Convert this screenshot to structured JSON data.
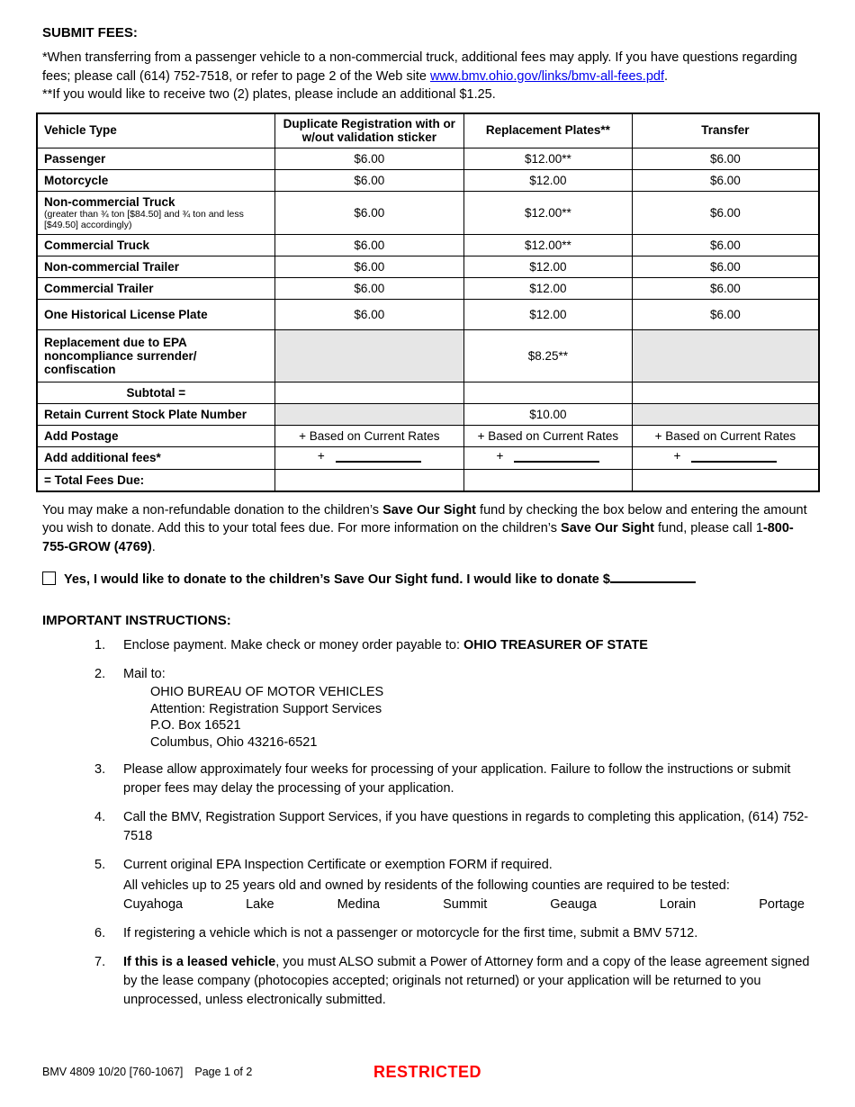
{
  "colors": {
    "link": "#0000ee",
    "restricted": "#ff0000",
    "table_shaded_cell": "#e6e6e6"
  },
  "submit_fees": {
    "title": "SUBMIT FEES:",
    "note1_before_link": "*When transferring from a passenger vehicle to a non-commercial truck, additional fees may apply. If you have questions regarding fees; please call (614) 752-7518, or refer to page 2 of the Web site ",
    "link_text": "www.bmv.ohio.gov/links/bmv-all-fees.pdf",
    "note1_after_link": ".",
    "note2": "**If you would like to receive two (2) plates, please include an additional $1.25."
  },
  "fees_table": {
    "headers": [
      "Vehicle Type",
      "Duplicate Registration with or\nw/out validation sticker",
      "Replacement Plates**",
      "Transfer"
    ],
    "rows": [
      {
        "label": "Passenger",
        "cells": [
          "$6.00",
          "$12.00**",
          "$6.00"
        ]
      },
      {
        "label": "Motorcycle",
        "cells": [
          "$6.00",
          "$12.00",
          "$6.00"
        ]
      },
      {
        "label": "Non-commercial Truck",
        "sublabel": "(greater than ¾ ton [$84.50] and ¾ ton and less\n[$49.50] accordingly)",
        "cells": [
          "$6.00",
          "$12.00**",
          "$6.00"
        ]
      },
      {
        "label": "Commercial Truck",
        "cells": [
          "$6.00",
          "$12.00**",
          "$6.00"
        ]
      },
      {
        "label": "Non-commercial Trailer",
        "cells": [
          "$6.00",
          "$12.00",
          "$6.00"
        ]
      },
      {
        "label": "Commercial Trailer",
        "cells": [
          "$6.00",
          "$12.00",
          "$6.00"
        ]
      },
      {
        "label": "One Historical License Plate",
        "cells": [
          "$6.00",
          "$12.00",
          "$6.00"
        ]
      },
      {
        "label": "Replacement due to EPA\nnoncompliance surrender/\nconfiscation",
        "cells": [
          "",
          "$8.25**",
          ""
        ]
      },
      {
        "label": "Subtotal =",
        "cells": [
          "",
          "",
          ""
        ]
      },
      {
        "label": "Retain Current Stock Plate Number",
        "cells": [
          "",
          "$10.00",
          ""
        ]
      },
      {
        "label": "Add Postage",
        "cells": [
          "+ Based on Current Rates",
          "+ Based on Current Rates",
          "+ Based on Current Rates"
        ]
      },
      {
        "label": "Add additional fees*",
        "plus_sign": "+",
        "cells": [
          "",
          "",
          ""
        ]
      },
      {
        "label": "= Total Fees Due:",
        "cells": [
          "",
          "",
          ""
        ]
      }
    ]
  },
  "donation": {
    "p1": "You may make a non-refundable donation to the children’s ",
    "b1": "Save Our Sight",
    "p2": " fund by checking the box below and entering the amount you wish to donate. Add this to your total fees due. For more information on the children’s ",
    "b2": "Save Our Sight",
    "p3": " fund, please call 1",
    "b3": "-800-755-GROW (4769)",
    "p4": ".",
    "checkbox_label": "Yes, I would like to donate to the children’s Save Our Sight fund. I would like to donate $"
  },
  "instructions": {
    "title": "IMPORTANT INSTRUCTIONS:",
    "items": [
      {
        "num": "1.",
        "text": "Enclose payment. Make check or money order payable to: ",
        "bold": "OHIO TREASURER OF STATE"
      },
      {
        "num": "2.",
        "text": "Mail to:",
        "address": [
          "OHIO BUREAU OF MOTOR VEHICLES",
          "Attention: Registration Support Services",
          "P.O. Box 16521",
          "Columbus, Ohio 43216-6521"
        ]
      },
      {
        "num": "3.",
        "text": "Please allow approximately four weeks for processing of your application. Failure to follow the instructions or submit proper fees may delay the processing of your application."
      },
      {
        "num": "4.",
        "text": "Call the BMV, Registration Support Services, if you have questions in regards to completing this application, (614) 752-7518"
      },
      {
        "num": "5.",
        "text": "Current original EPA Inspection Certificate or exemption FORM if required.",
        "note": "All vehicles up to 25 years old and owned by residents of the following counties are required to be tested:",
        "counties": [
          "Cuyahoga",
          "Lake",
          "Medina",
          "Summit",
          "Geauga",
          "Lorain",
          "Portage"
        ]
      },
      {
        "num": "6.",
        "text": "If registering a vehicle which is not a passenger or motorcycle for the first time, submit a BMV 5712."
      },
      {
        "num": "7.",
        "bold": "If this is a leased vehicle",
        "text": ", you must ALSO submit a Power of Attorney form and a copy of the lease agreement signed by the lease company (photocopies accepted; originals not returned) or your application will be returned to you unprocessed, unless electronically submitted."
      }
    ]
  },
  "footer": {
    "form_number": "BMV 4809 10/20 [760-1067]",
    "page": "Page 1 of 2",
    "restricted": "RESTRICTED"
  }
}
